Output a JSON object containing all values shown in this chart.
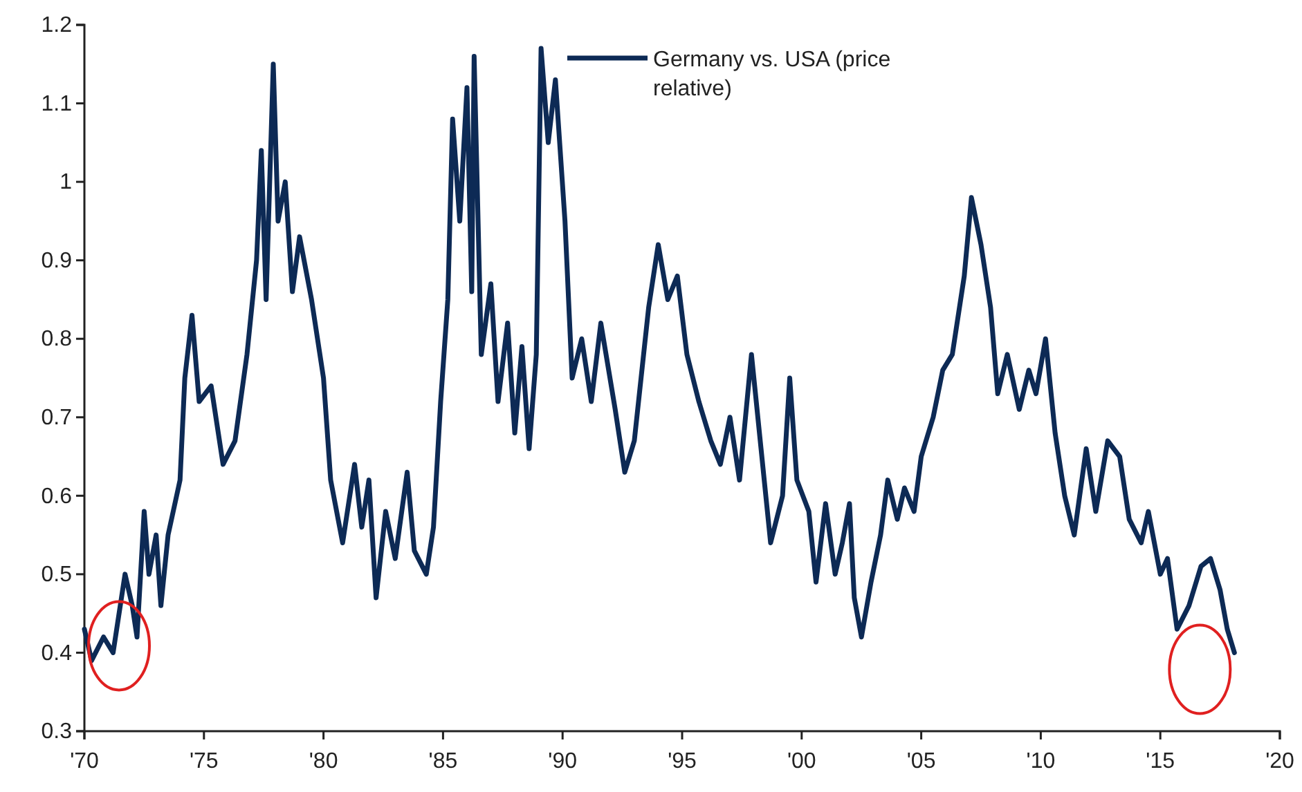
{
  "chart_data": {
    "type": "line",
    "x": [
      1970.0,
      1970.3,
      1970.8,
      1971.2,
      1971.7,
      1972.0,
      1972.2,
      1972.5,
      1972.7,
      1973.0,
      1973.2,
      1973.5,
      1974.0,
      1974.2,
      1974.5,
      1974.8,
      1975.3,
      1975.8,
      1976.3,
      1976.8,
      1977.2,
      1977.4,
      1977.6,
      1977.9,
      1978.1,
      1978.4,
      1978.7,
      1979.0,
      1979.5,
      1980.0,
      1980.3,
      1980.8,
      1981.3,
      1981.6,
      1981.9,
      1982.2,
      1982.6,
      1983.0,
      1983.5,
      1983.8,
      1984.3,
      1984.6,
      1984.9,
      1985.2,
      1985.4,
      1985.7,
      1986.0,
      1986.2,
      1986.3,
      1986.6,
      1987.0,
      1987.3,
      1987.7,
      1988.0,
      1988.3,
      1988.6,
      1988.9,
      1989.1,
      1989.4,
      1989.7,
      1990.1,
      1990.4,
      1990.8,
      1991.2,
      1991.6,
      1992.2,
      1992.6,
      1993.0,
      1993.6,
      1994.0,
      1994.4,
      1994.8,
      1995.2,
      1995.7,
      1996.2,
      1996.6,
      1997.0,
      1997.4,
      1997.9,
      1998.3,
      1998.7,
      1999.2,
      1999.5,
      1999.8,
      2000.3,
      2000.6,
      2001.0,
      2001.4,
      2001.7,
      2002.0,
      2002.2,
      2002.5,
      2002.9,
      2003.3,
      2003.6,
      2004.0,
      2004.3,
      2004.7,
      2005.0,
      2005.5,
      2005.9,
      2006.3,
      2006.8,
      2007.1,
      2007.5,
      2007.9,
      2008.2,
      2008.6,
      2009.1,
      2009.5,
      2009.8,
      2010.2,
      2010.6,
      2011.0,
      2011.4,
      2011.9,
      2012.3,
      2012.8,
      2013.3,
      2013.7,
      2014.2,
      2014.5,
      2015.0,
      2015.3,
      2015.7,
      2016.2,
      2016.7,
      2017.1,
      2017.5,
      2017.8,
      2018.1
    ],
    "series": [
      {
        "name": "Germany vs. USA (price relative)",
        "color": "#0d2a55",
        "values": [
          0.43,
          0.39,
          0.42,
          0.4,
          0.5,
          0.46,
          0.42,
          0.58,
          0.5,
          0.55,
          0.46,
          0.55,
          0.62,
          0.75,
          0.83,
          0.72,
          0.74,
          0.64,
          0.67,
          0.78,
          0.9,
          1.04,
          0.85,
          1.15,
          0.95,
          1.0,
          0.86,
          0.93,
          0.85,
          0.75,
          0.62,
          0.54,
          0.64,
          0.56,
          0.62,
          0.47,
          0.58,
          0.52,
          0.63,
          0.53,
          0.5,
          0.56,
          0.72,
          0.85,
          1.08,
          0.95,
          1.12,
          0.86,
          1.16,
          0.78,
          0.87,
          0.72,
          0.82,
          0.68,
          0.79,
          0.66,
          0.78,
          1.17,
          1.05,
          1.13,
          0.95,
          0.75,
          0.8,
          0.72,
          0.82,
          0.71,
          0.63,
          0.67,
          0.84,
          0.92,
          0.85,
          0.88,
          0.78,
          0.72,
          0.67,
          0.64,
          0.7,
          0.62,
          0.78,
          0.66,
          0.54,
          0.6,
          0.75,
          0.62,
          0.58,
          0.49,
          0.59,
          0.5,
          0.54,
          0.59,
          0.47,
          0.42,
          0.49,
          0.55,
          0.62,
          0.57,
          0.61,
          0.58,
          0.65,
          0.7,
          0.76,
          0.78,
          0.88,
          0.98,
          0.92,
          0.84,
          0.73,
          0.78,
          0.71,
          0.76,
          0.73,
          0.8,
          0.68,
          0.6,
          0.55,
          0.66,
          0.58,
          0.67,
          0.65,
          0.57,
          0.54,
          0.58,
          0.5,
          0.52,
          0.43,
          0.46,
          0.51,
          0.52,
          0.48,
          0.43,
          0.4
        ]
      }
    ],
    "xlim": [
      1970,
      2020
    ],
    "xticks": [
      {
        "value": 1970,
        "label": "'70"
      },
      {
        "value": 1975,
        "label": "'75"
      },
      {
        "value": 1980,
        "label": "'80"
      },
      {
        "value": 1985,
        "label": "'85"
      },
      {
        "value": 1990,
        "label": "'90"
      },
      {
        "value": 1995,
        "label": "'95"
      },
      {
        "value": 2000,
        "label": "'00"
      },
      {
        "value": 2005,
        "label": "'05"
      },
      {
        "value": 2010,
        "label": "'10"
      },
      {
        "value": 2015,
        "label": "'15"
      },
      {
        "value": 2020,
        "label": "'20"
      }
    ],
    "ylim": [
      0.3,
      1.2
    ],
    "yticks": [
      0.3,
      0.4,
      0.5,
      0.6,
      0.7,
      0.8,
      0.9,
      1,
      1.1,
      1.2
    ],
    "legend": "top",
    "grid": false,
    "marker": "none",
    "line_style": "solid"
  }
}
